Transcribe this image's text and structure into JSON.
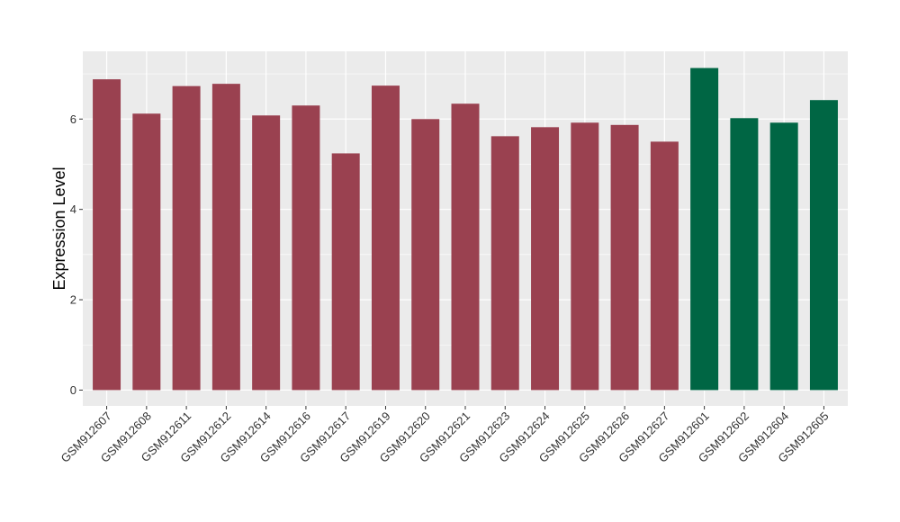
{
  "chart_data": {
    "type": "bar",
    "title": "",
    "xlabel": "",
    "ylabel": "Expression Level",
    "ylim": [
      -0.35,
      7.5
    ],
    "yticks": [
      0,
      2,
      4,
      6
    ],
    "grid": true,
    "categories": [
      "GSM912607",
      "GSM912608",
      "GSM912611",
      "GSM912612",
      "GSM912614",
      "GSM912616",
      "GSM912617",
      "GSM912619",
      "GSM912620",
      "GSM912621",
      "GSM912623",
      "GSM912624",
      "GSM912625",
      "GSM912626",
      "GSM912627",
      "GSM912601",
      "GSM912602",
      "GSM912604",
      "GSM912605"
    ],
    "values": [
      6.88,
      6.12,
      6.73,
      6.78,
      6.08,
      6.3,
      5.24,
      6.74,
      6.0,
      6.34,
      5.62,
      5.82,
      5.92,
      5.87,
      5.5,
      7.13,
      6.02,
      5.92,
      6.42
    ],
    "groups": [
      "a",
      "a",
      "a",
      "a",
      "a",
      "a",
      "a",
      "a",
      "a",
      "a",
      "a",
      "a",
      "a",
      "a",
      "a",
      "b",
      "b",
      "b",
      "b"
    ],
    "colors": {
      "a": "#9a4150",
      "b": "#006644"
    },
    "panel_background": "#ebebeb",
    "gridline_color": "#ffffff"
  }
}
